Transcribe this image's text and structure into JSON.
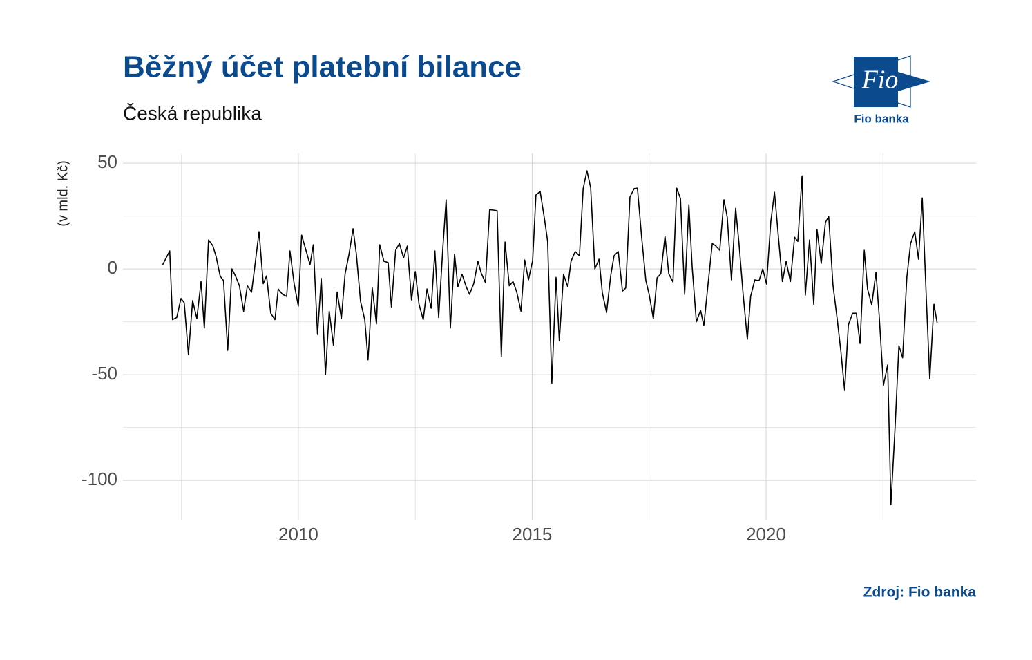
{
  "chart_data": {
    "type": "line",
    "title": "Běžný účet platební bilance",
    "subtitle": "Česká republika",
    "y_label": "(v mld. Kč)",
    "source": "Zdroj: Fio banka",
    "logo": {
      "mark": "Fio",
      "name": "Fio banka"
    },
    "xlim": [
      2006.25,
      2024.49
    ],
    "xticks": [
      2010,
      2015,
      2020
    ],
    "ylim": [
      -118.6,
      54.6
    ],
    "yticks": [
      -100,
      -50,
      0,
      50
    ],
    "grid": true,
    "x": [
      2007.1,
      2007.25,
      2007.31,
      2007.4,
      2007.49,
      2007.56,
      2007.65,
      2007.74,
      2007.83,
      2007.92,
      2007.99,
      2008.08,
      2008.17,
      2008.24,
      2008.33,
      2008.4,
      2008.49,
      2008.58,
      2008.66,
      2008.74,
      2008.83,
      2008.91,
      2009.0,
      2009.07,
      2009.16,
      2009.25,
      2009.32,
      2009.41,
      2009.5,
      2009.57,
      2009.66,
      2009.75,
      2009.82,
      2009.91,
      2010.0,
      2010.07,
      2010.16,
      2010.25,
      2010.32,
      2010.41,
      2010.49,
      2010.58,
      2010.66,
      2010.75,
      2010.83,
      2010.92,
      2011.0,
      2011.08,
      2011.17,
      2011.24,
      2011.33,
      2011.42,
      2011.49,
      2011.58,
      2011.67,
      2011.74,
      2011.83,
      2011.92,
      2011.99,
      2012.08,
      2012.16,
      2012.25,
      2012.33,
      2012.42,
      2012.5,
      2012.58,
      2012.67,
      2012.75,
      2012.84,
      2012.92,
      2013.0,
      2013.09,
      2013.16,
      2013.25,
      2013.34,
      2013.41,
      2013.5,
      2013.59,
      2013.66,
      2013.75,
      2013.84,
      2013.91,
      2014.0,
      2014.09,
      2014.17,
      2014.25,
      2014.34,
      2014.42,
      2014.51,
      2014.59,
      2014.67,
      2014.76,
      2014.84,
      2014.92,
      2015.01,
      2015.08,
      2015.17,
      2015.26,
      2015.33,
      2015.42,
      2015.51,
      2015.58,
      2015.67,
      2015.76,
      2015.83,
      2015.92,
      2016.01,
      2016.09,
      2016.17,
      2016.25,
      2016.34,
      2016.43,
      2016.5,
      2016.59,
      2016.68,
      2016.75,
      2016.84,
      2016.93,
      2017.0,
      2017.09,
      2017.18,
      2017.25,
      2017.34,
      2017.43,
      2017.5,
      2017.59,
      2017.67,
      2017.75,
      2017.84,
      2017.92,
      2018.01,
      2018.09,
      2018.17,
      2018.26,
      2018.35,
      2018.42,
      2018.51,
      2018.6,
      2018.67,
      2018.76,
      2018.85,
      2018.92,
      2019.01,
      2019.1,
      2019.17,
      2019.26,
      2019.35,
      2019.42,
      2019.51,
      2019.6,
      2019.67,
      2019.76,
      2019.85,
      2019.93,
      2020.01,
      2020.1,
      2020.18,
      2020.27,
      2020.35,
      2020.43,
      2020.52,
      2020.61,
      2020.68,
      2020.77,
      2020.84,
      2020.93,
      2021.02,
      2021.09,
      2021.18,
      2021.27,
      2021.34,
      2021.43,
      2021.52,
      2021.6,
      2021.68,
      2021.76,
      2021.85,
      2021.93,
      2022.01,
      2022.1,
      2022.17,
      2022.26,
      2022.35,
      2022.42,
      2022.51,
      2022.6,
      2022.67,
      2022.76,
      2022.84,
      2022.92,
      2023.01,
      2023.09,
      2023.18,
      2023.26,
      2023.34,
      2023.43,
      2023.5,
      2023.59,
      2023.66
    ],
    "series": [
      {
        "color": "#000000",
        "values": [
          2,
          8.5,
          -24,
          -23,
          -14,
          -16,
          -40.5,
          -15,
          -23.5,
          -6,
          -28,
          13.7,
          11,
          6,
          -3.5,
          -5.5,
          -38.5,
          0,
          -3.5,
          -8,
          -20,
          -8,
          -11,
          1.3,
          17.6,
          -7,
          -3.3,
          -21,
          -24,
          -9.5,
          -12,
          -13,
          8.5,
          -7,
          -17.6,
          16,
          9,
          2,
          11.4,
          -31,
          -4.5,
          -50,
          -20,
          -36,
          -11,
          -23.5,
          -2.3,
          6.5,
          19,
          7,
          -15.4,
          -24,
          -43,
          -9,
          -26,
          11.4,
          3.6,
          3,
          -18,
          8.8,
          12,
          5.2,
          10.8,
          -14.7,
          -1.3,
          -16.7,
          -24,
          -9.5,
          -18.6,
          8.5,
          -23,
          10,
          32.7,
          -28,
          7,
          -8.5,
          -2.6,
          -8.5,
          -12,
          -7,
          3.6,
          -2,
          -6.5,
          28,
          27.8,
          27.5,
          -41.5,
          12.7,
          -8,
          -6,
          -11,
          -20,
          4.2,
          -5.2,
          4,
          35,
          36.6,
          24,
          13,
          -54,
          -4,
          -34,
          -2.6,
          -8.5,
          3.6,
          8.2,
          6.2,
          38,
          46.4,
          38.5,
          0,
          4.6,
          -11.4,
          -20.6,
          -3,
          6.2,
          8.2,
          -10.5,
          -9,
          34,
          38,
          38.2,
          15,
          -5.5,
          -12,
          -23.5,
          -4.2,
          -2.3,
          15.4,
          -2.3,
          -6.2,
          38.2,
          33.3,
          -12,
          30.4,
          1,
          -25,
          -19.6,
          -26.8,
          -7.2,
          12,
          11,
          8.8,
          32.7,
          24.5,
          -5.2,
          28.7,
          12.4,
          -12,
          -33.3,
          -13,
          -5.2,
          -5.6,
          0,
          -7.2,
          22,
          36.3,
          13.7,
          -6,
          3.6,
          -6,
          15,
          13,
          44,
          -12.4,
          13.7,
          -16.7,
          18.6,
          2.6,
          22,
          24.8,
          -7.5,
          -23.5,
          -39,
          -57.5,
          -26.5,
          -21,
          -21,
          -35.3,
          8.8,
          -9.5,
          -17,
          -1.6,
          -22.5,
          -55,
          -45.4,
          -111.4,
          -74.5,
          -36.3,
          -42,
          -4,
          12,
          17.6,
          4.6,
          33.6,
          -15.7,
          -52,
          -16.7,
          -25.8
        ]
      }
    ]
  }
}
